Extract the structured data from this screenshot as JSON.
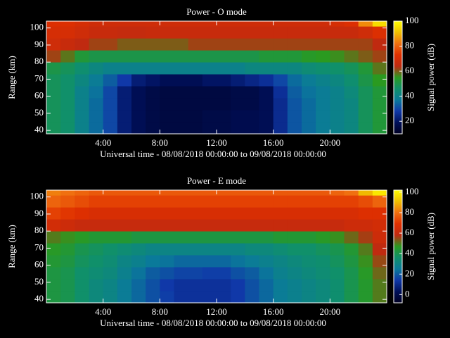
{
  "chart_data": [
    {
      "type": "heatmap",
      "title": "Power - O mode",
      "xlabel": "Universal time - 08/08/2018 00:00:00 to 09/08/2018 00:00:00",
      "ylabel": "Range (km)",
      "colorbar_label": "Signal power (dB)",
      "xlim": [
        0,
        24
      ],
      "ylim": [
        38,
        104
      ],
      "zlim": [
        10,
        100
      ],
      "xticks": [
        {
          "value": 4,
          "label": "4:00"
        },
        {
          "value": 8,
          "label": "8:00"
        },
        {
          "value": 12,
          "label": "12:00"
        },
        {
          "value": 16,
          "label": "16:00"
        },
        {
          "value": 20,
          "label": "20:00"
        }
      ],
      "yticks": [
        40,
        50,
        60,
        70,
        80,
        90,
        100
      ],
      "zticks": [
        20,
        40,
        60,
        80,
        100
      ],
      "colors": [
        "#000022",
        "#00105a",
        "#1038a8",
        "#0a7a9a",
        "#10906a",
        "#2a9a20",
        "#c02a10",
        "#e03000",
        "#f07010",
        "#f0c000",
        "#ffff00"
      ],
      "x_bins": [
        0,
        1,
        2,
        3,
        4,
        5,
        6,
        7,
        8,
        9,
        10,
        11,
        12,
        13,
        14,
        15,
        16,
        17,
        18,
        19,
        20,
        21,
        22,
        23,
        24
      ],
      "y_bins": [
        38,
        45,
        52,
        59,
        66,
        73,
        80,
        87,
        94,
        101,
        104
      ],
      "values": [
        [
          48,
          46,
          40,
          35,
          30,
          22,
          18,
          16,
          15,
          15,
          15,
          16,
          16,
          17,
          17,
          18,
          25,
          32,
          35,
          38,
          40,
          42,
          48,
          52
        ],
        [
          48,
          46,
          40,
          35,
          30,
          22,
          18,
          16,
          15,
          15,
          15,
          16,
          16,
          17,
          17,
          18,
          25,
          32,
          35,
          38,
          40,
          42,
          48,
          52
        ],
        [
          48,
          46,
          40,
          35,
          30,
          22,
          18,
          16,
          15,
          15,
          15,
          15,
          15,
          16,
          16,
          18,
          25,
          32,
          35,
          38,
          40,
          42,
          48,
          52
        ],
        [
          48,
          46,
          40,
          36,
          30,
          22,
          18,
          16,
          15,
          15,
          15,
          15,
          15,
          16,
          16,
          18,
          26,
          33,
          36,
          38,
          40,
          43,
          48,
          52
        ],
        [
          48,
          46,
          42,
          38,
          33,
          28,
          22,
          20,
          18,
          18,
          18,
          20,
          20,
          22,
          24,
          26,
          30,
          35,
          38,
          40,
          42,
          45,
          50,
          55
        ],
        [
          50,
          48,
          45,
          42,
          40,
          40,
          40,
          40,
          40,
          40,
          40,
          40,
          40,
          40,
          42,
          42,
          42,
          42,
          44,
          45,
          46,
          48,
          52,
          58
        ],
        [
          62,
          58,
          52,
          50,
          50,
          50,
          50,
          50,
          50,
          50,
          50,
          50,
          50,
          50,
          50,
          52,
          52,
          52,
          54,
          55,
          56,
          58,
          60,
          62
        ],
        [
          68,
          66,
          64,
          62,
          62,
          60,
          60,
          60,
          60,
          60,
          62,
          62,
          62,
          62,
          62,
          62,
          62,
          62,
          62,
          62,
          62,
          62,
          62,
          64
        ],
        [
          70,
          70,
          68,
          66,
          66,
          65,
          65,
          66,
          66,
          66,
          66,
          66,
          66,
          66,
          66,
          66,
          66,
          66,
          66,
          66,
          66,
          66,
          68,
          72
        ],
        [
          72,
          72,
          70,
          68,
          68,
          68,
          68,
          68,
          68,
          68,
          68,
          68,
          68,
          68,
          68,
          68,
          68,
          68,
          68,
          68,
          70,
          72,
          85,
          95
        ]
      ]
    },
    {
      "type": "heatmap",
      "title": "Power - E mode",
      "xlabel": "Universal time - 08/08/2018 00:00:00 to 09/08/2018 00:00:00",
      "ylabel": "Range (km)",
      "colorbar_label": "Signal power (dB)",
      "xlim": [
        0,
        24
      ],
      "ylim": [
        38,
        104
      ],
      "zlim": [
        -8,
        102
      ],
      "xticks": [
        {
          "value": 4,
          "label": "4:00"
        },
        {
          "value": 8,
          "label": "8:00"
        },
        {
          "value": 12,
          "label": "12:00"
        },
        {
          "value": 16,
          "label": "16:00"
        },
        {
          "value": 20,
          "label": "20:00"
        }
      ],
      "yticks": [
        40,
        50,
        60,
        70,
        80,
        90,
        100
      ],
      "zticks": [
        0,
        20,
        40,
        60,
        80,
        100
      ],
      "colors": [
        "#000022",
        "#00105a",
        "#1038a8",
        "#0a7a9a",
        "#10906a",
        "#2a9a20",
        "#c02a10",
        "#e03000",
        "#f07010",
        "#f0c000",
        "#ffff00"
      ],
      "x_bins": [
        0,
        1,
        2,
        3,
        4,
        5,
        6,
        7,
        8,
        9,
        10,
        11,
        12,
        13,
        14,
        15,
        16,
        17,
        18,
        19,
        20,
        21,
        22,
        23,
        24
      ],
      "y_bins": [
        38,
        45,
        52,
        59,
        66,
        73,
        80,
        87,
        94,
        101,
        104
      ],
      "values": [
        [
          42,
          40,
          36,
          32,
          30,
          26,
          22,
          18,
          15,
          12,
          12,
          12,
          12,
          14,
          18,
          22,
          26,
          28,
          30,
          32,
          35,
          40,
          45,
          50
        ],
        [
          42,
          40,
          36,
          32,
          30,
          26,
          22,
          18,
          14,
          12,
          12,
          12,
          12,
          14,
          18,
          22,
          26,
          28,
          30,
          32,
          35,
          40,
          45,
          50
        ],
        [
          42,
          40,
          36,
          34,
          32,
          28,
          24,
          20,
          18,
          16,
          16,
          15,
          15,
          18,
          20,
          24,
          28,
          30,
          32,
          34,
          36,
          40,
          46,
          52
        ],
        [
          44,
          42,
          38,
          36,
          34,
          30,
          28,
          25,
          24,
          22,
          22,
          22,
          22,
          24,
          26,
          28,
          30,
          32,
          34,
          35,
          38,
          42,
          48,
          55
        ],
        [
          46,
          44,
          40,
          38,
          36,
          34,
          32,
          30,
          30,
          30,
          30,
          30,
          30,
          30,
          32,
          32,
          34,
          36,
          36,
          38,
          40,
          44,
          50,
          58
        ],
        [
          50,
          48,
          46,
          44,
          44,
          44,
          42,
          42,
          42,
          42,
          42,
          42,
          42,
          42,
          42,
          42,
          44,
          44,
          44,
          46,
          48,
          52,
          56,
          62
        ],
        [
          64,
          62,
          60,
          60,
          60,
          60,
          60,
          60,
          60,
          60,
          60,
          60,
          60,
          60,
          60,
          60,
          60,
          60,
          60,
          60,
          60,
          62,
          62,
          64
        ],
        [
          72,
          70,
          68,
          66,
          66,
          66,
          66,
          66,
          66,
          66,
          66,
          66,
          66,
          66,
          66,
          66,
          66,
          66,
          66,
          66,
          66,
          66,
          68,
          68
        ],
        [
          78,
          76,
          74,
          72,
          72,
          72,
          72,
          72,
          72,
          72,
          72,
          72,
          72,
          72,
          72,
          72,
          72,
          72,
          72,
          72,
          72,
          72,
          74,
          78
        ],
        [
          82,
          80,
          78,
          76,
          76,
          76,
          76,
          76,
          76,
          76,
          76,
          76,
          76,
          76,
          76,
          76,
          76,
          76,
          76,
          76,
          78,
          80,
          90,
          98
        ]
      ]
    }
  ]
}
